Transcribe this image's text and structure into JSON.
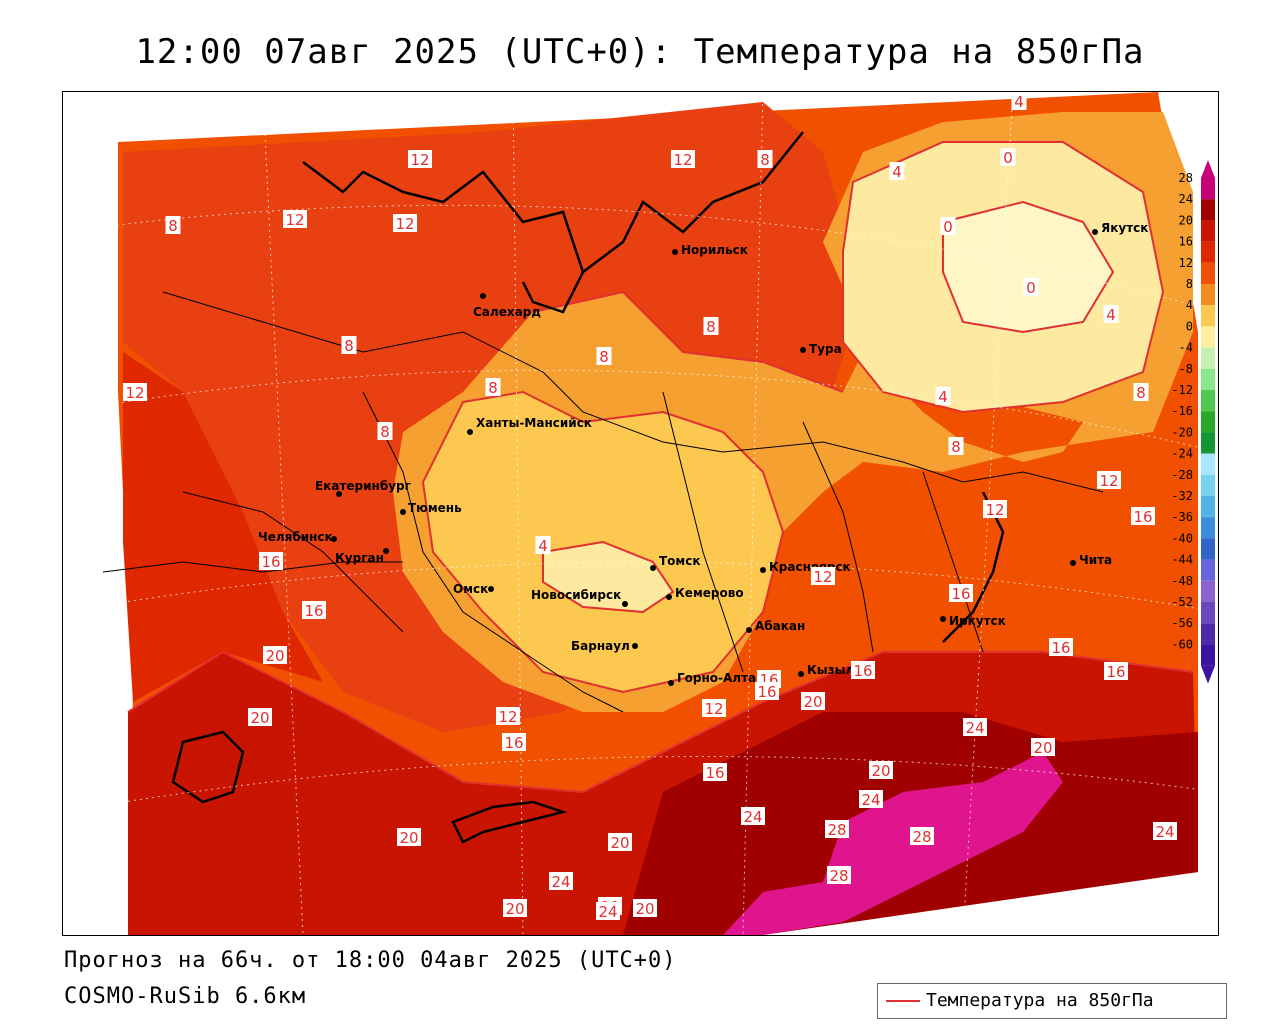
{
  "title": "12:00 07авг 2025 (UTC+0): Температура на 850гПа",
  "footer": {
    "forecast": "Прогноз на 66ч. от 18:00 04авг 2025 (UTC+0)",
    "model": "COSMO-RuSib 6.6км"
  },
  "legend": {
    "label": "Температура на 850гПа",
    "color": "#e03030"
  },
  "colorbar": {
    "ticks": [
      "28",
      "24",
      "20",
      "16",
      "12",
      "8",
      "4",
      "0",
      "-4",
      "-8",
      "-12",
      "-16",
      "-20",
      "-24",
      "-28",
      "-32",
      "-36",
      "-40",
      "-44",
      "-48",
      "-52",
      "-56",
      "-60"
    ],
    "colors": [
      "#c80078",
      "#a00000",
      "#c81400",
      "#e02800",
      "#f05000",
      "#f58c20",
      "#fcc850",
      "#fff0a0",
      "#c8f0b4",
      "#8ce68c",
      "#50c850",
      "#28aa28",
      "#149632",
      "#aae6ff",
      "#78d2f0",
      "#50b4e6",
      "#3c8cdc",
      "#3264c8",
      "#6464dc",
      "#8c64d2",
      "#6e46be",
      "#5028aa",
      "#3c14a0"
    ]
  },
  "cities": [
    {
      "name": "Норильск"
    },
    {
      "name": "Салехард"
    },
    {
      "name": "Тура"
    },
    {
      "name": "Якутск"
    },
    {
      "name": "Ханты-Мансийск"
    },
    {
      "name": "Екатеринбург"
    },
    {
      "name": "Тюмень"
    },
    {
      "name": "Челябинск"
    },
    {
      "name": "Курган"
    },
    {
      "name": "Омск"
    },
    {
      "name": "Новосибирск"
    },
    {
      "name": "Томск"
    },
    {
      "name": "Кемерово"
    },
    {
      "name": "Барнаул"
    },
    {
      "name": "Горно-Алтайск"
    },
    {
      "name": "Абакан"
    },
    {
      "name": "Красноярск"
    },
    {
      "name": "Кызыл"
    },
    {
      "name": "Иркутск"
    },
    {
      "name": "Чита"
    }
  ],
  "isotherm_labels": [
    "12",
    "12",
    "12",
    "12",
    "8",
    "8",
    "8",
    "8",
    "8",
    "8",
    "8",
    "8",
    "12",
    "12",
    "4",
    "0",
    "0",
    "0",
    "4",
    "4",
    "4",
    "4",
    "8",
    "8",
    "12",
    "16",
    "16",
    "16",
    "16",
    "16",
    "16",
    "16",
    "16",
    "12",
    "12",
    "16",
    "16",
    "20",
    "20",
    "20",
    "20",
    "20",
    "20",
    "20",
    "20",
    "24",
    "24",
    "24",
    "24",
    "24",
    "28",
    "28",
    "28",
    "20",
    "20",
    "12",
    "16",
    "12",
    "24"
  ]
}
